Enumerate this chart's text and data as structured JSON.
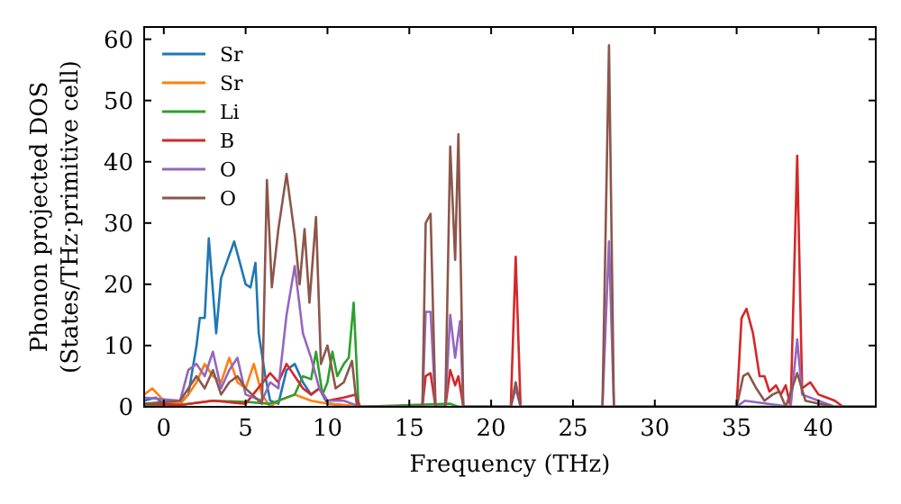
{
  "chart_data": {
    "type": "line",
    "xlabel": "Frequency (THz)",
    "ylabel": "Phonon projected DOS\n(States/THz·primitive cell)",
    "xlim": [
      -1.2,
      43.5
    ],
    "ylim": [
      0,
      62
    ],
    "xticks": [
      0,
      5,
      10,
      15,
      20,
      25,
      30,
      35,
      40
    ],
    "yticks": [
      0,
      10,
      20,
      30,
      40,
      50,
      60
    ],
    "grid": false,
    "legend": "top left",
    "marker": "none",
    "line_style": "solid",
    "series": [
      {
        "name": "Sr",
        "color": "#1f77b4",
        "x": [
          -1.2,
          -0.5,
          0,
          1,
          1.5,
          2,
          2.2,
          2.5,
          2.75,
          3.2,
          3.5,
          3.9,
          4.3,
          4.7,
          5,
          5.3,
          5.6,
          5.8,
          6.2,
          6.5,
          7,
          7.5,
          8,
          8.5,
          9,
          9.5,
          10,
          12,
          43.5
        ],
        "values": [
          1,
          1.5,
          0.5,
          0.5,
          2,
          10,
          14.5,
          14.5,
          27.5,
          12,
          21,
          24,
          27,
          23,
          20,
          19.5,
          23.5,
          12,
          5,
          1,
          0.5,
          6,
          7,
          4,
          2,
          3,
          0.5,
          0,
          0
        ]
      },
      {
        "name": "Sr",
        "color": "#ff7f0e",
        "x": [
          -1.2,
          -0.7,
          0,
          1,
          1.5,
          2,
          2.5,
          3,
          3.5,
          4,
          4.5,
          5,
          5.5,
          6,
          6.5,
          7,
          8,
          9,
          10,
          11,
          12
        ],
        "values": [
          2,
          3,
          1,
          0.5,
          2,
          4,
          7,
          5,
          4,
          8,
          4,
          3,
          7,
          2,
          0,
          1,
          2,
          1,
          0.5,
          0.3,
          0
        ]
      },
      {
        "name": "Li",
        "color": "#2ca02c",
        "x": [
          -1.2,
          1,
          3,
          5,
          6.5,
          8,
          8.5,
          9,
          9.3,
          9.7,
          10,
          10.3,
          10.6,
          11,
          11.3,
          11.6,
          11.9,
          17.5,
          18,
          43.5
        ],
        "values": [
          0.3,
          0.3,
          1,
          0.8,
          0.5,
          2,
          5,
          4.5,
          9,
          2,
          4,
          9,
          5,
          7,
          8,
          17,
          0,
          0.5,
          0,
          0
        ]
      },
      {
        "name": "B",
        "color": "#d62728",
        "x": [
          -1.2,
          1,
          3,
          5,
          6.5,
          7,
          7.5,
          8,
          8.5,
          9,
          9.5,
          10,
          11,
          11.7,
          12,
          15.8,
          16,
          16.3,
          16.6,
          17.2,
          17.5,
          17.8,
          18,
          18.3,
          21.2,
          21.5,
          21.8,
          35,
          35.3,
          35.6,
          36,
          36.4,
          36.7,
          37,
          37.4,
          37.7,
          38,
          38.3,
          38.7,
          39,
          39.5,
          40,
          40.5,
          41,
          41.5,
          43.5
        ],
        "values": [
          0.5,
          0.3,
          1,
          0.5,
          5.5,
          4,
          7,
          5,
          3,
          2,
          3,
          1,
          1.5,
          2,
          0,
          0,
          5,
          5.5,
          0,
          0,
          6,
          3.5,
          5,
          0,
          0,
          24.5,
          0,
          0,
          14.5,
          16,
          12,
          5,
          5,
          2.5,
          3.5,
          2,
          3.5,
          0,
          41,
          3,
          4,
          2,
          1.5,
          1,
          0,
          0
        ]
      },
      {
        "name": "O",
        "color": "#9467bd",
        "x": [
          -1.2,
          1,
          1.5,
          2,
          2.5,
          3,
          3.5,
          4,
          4.5,
          5,
          6,
          6.5,
          7,
          7.5,
          8,
          8.5,
          9,
          9.5,
          10,
          11,
          12,
          15.8,
          16,
          16.3,
          16.6,
          17.2,
          17.5,
          17.8,
          18.1,
          18.3,
          21.2,
          21.5,
          21.8,
          26.8,
          27.2,
          27.5,
          35,
          35.5,
          38.3,
          38.7,
          39,
          40,
          41,
          43.5
        ],
        "values": [
          1.5,
          1,
          6,
          7,
          5,
          9,
          3,
          6,
          8,
          2,
          1,
          4,
          3,
          15,
          23,
          12,
          8,
          3,
          1,
          1,
          0,
          0,
          15.5,
          15.5,
          0,
          0,
          15,
          8,
          14,
          0,
          0,
          3,
          0,
          0,
          27,
          0,
          0,
          1,
          0,
          11,
          2,
          1,
          0,
          0
        ]
      },
      {
        "name": "O",
        "color": "#8c564b",
        "x": [
          -1.2,
          1,
          1.5,
          2,
          2.5,
          3,
          3.5,
          4,
          4.5,
          5,
          6,
          6.3,
          6.6,
          7,
          7.5,
          8,
          8.3,
          8.6,
          8.9,
          9.3,
          9.6,
          10,
          10.5,
          11,
          11.5,
          11.8,
          15.8,
          16,
          16.3,
          16.6,
          17.2,
          17.5,
          17.8,
          18,
          18.3,
          21.2,
          21.5,
          21.8,
          26.8,
          27.2,
          27.5,
          35,
          35.4,
          35.7,
          36.2,
          36.7,
          37.2,
          37.6,
          38,
          38.7,
          39.2,
          40,
          41,
          43.5
        ],
        "values": [
          0.5,
          1,
          3,
          5,
          3,
          6,
          2,
          4,
          5,
          3,
          0.5,
          37,
          19.5,
          29,
          38,
          28,
          20,
          29,
          17,
          31,
          7,
          10,
          3,
          4,
          7.5,
          0,
          0,
          30,
          31.5,
          0,
          0,
          42.5,
          24,
          44.5,
          0,
          0,
          4,
          0,
          0,
          59,
          0,
          0,
          5,
          5.5,
          3,
          1,
          2,
          2.5,
          0,
          5.5,
          1,
          0.5,
          0,
          0
        ]
      }
    ]
  }
}
